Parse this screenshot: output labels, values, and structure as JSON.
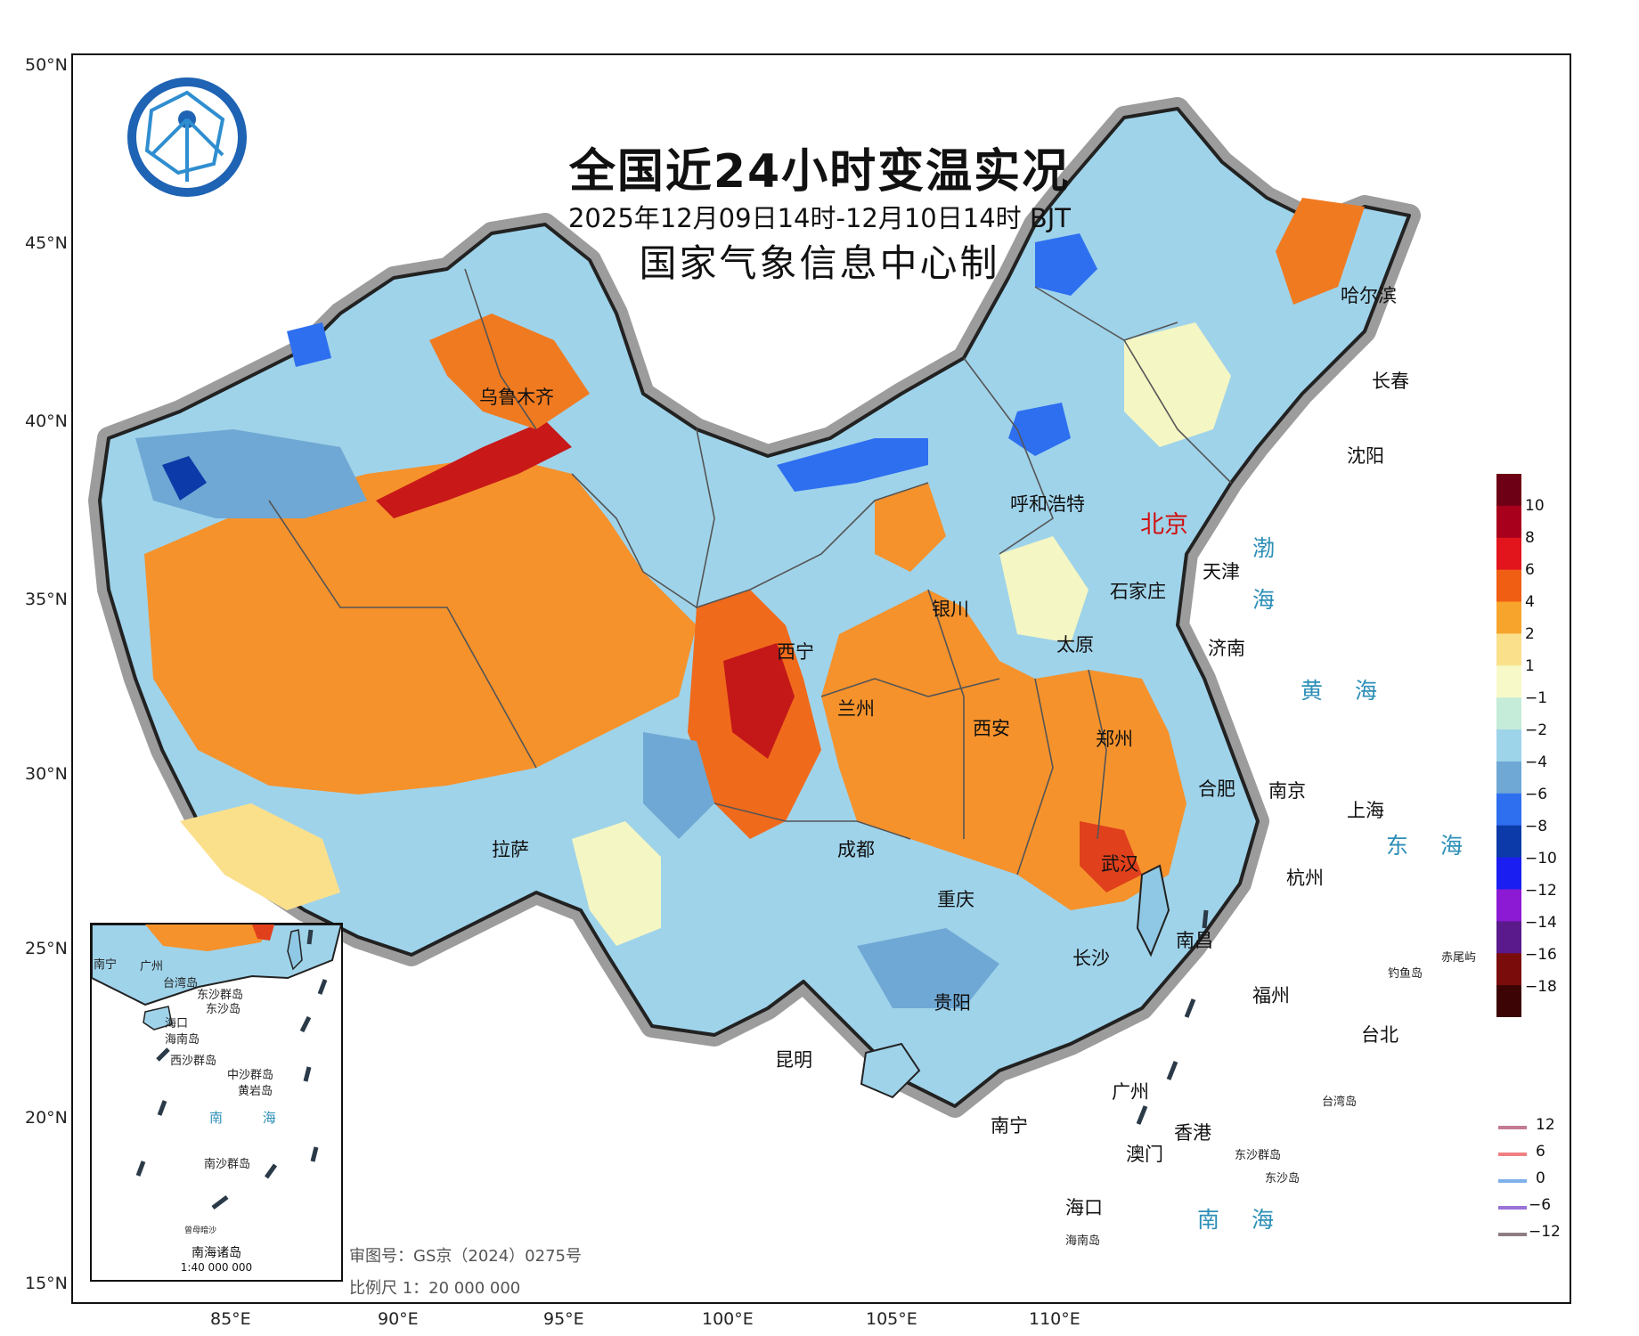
{
  "title": "全国近24小时变温实况",
  "subtitle": "2025年12月09日14时-12月10日14时 BJT",
  "producer": "国家气象信息中心制",
  "lat_labels": [
    "50°N",
    "45°N",
    "40°N",
    "35°N",
    "30°N",
    "25°N",
    "20°N",
    "15°N"
  ],
  "lon_labels": [
    "85°E",
    "90°E",
    "95°E",
    "100°E",
    "105°E",
    "110°E"
  ],
  "cities": [
    "乌鲁木齐",
    "哈尔滨",
    "长春",
    "沈阳",
    "呼和浩特",
    "北京",
    "天津",
    "石家庄",
    "银川",
    "太原",
    "济南",
    "西宁",
    "兰州",
    "西安",
    "郑州",
    "合肥",
    "南京",
    "上海",
    "拉萨",
    "成都",
    "武汉",
    "杭州",
    "重庆",
    "长沙",
    "南昌",
    "贵阳",
    "福州",
    "台北",
    "昆明",
    "广州",
    "南宁",
    "香港",
    "澳门",
    "海口"
  ],
  "seas": [
    "渤",
    "海",
    "黄 海",
    "东 海",
    "南 海"
  ],
  "islands": [
    "钓鱼岛",
    "赤尾屿",
    "台湾岛",
    "东沙群岛",
    "东沙岛",
    "海南岛"
  ],
  "inset": {
    "title": "南海诸岛",
    "scale": "1:40 000 000",
    "labels": [
      "南宁",
      "广州",
      "台湾岛",
      "东沙群岛",
      "东沙岛",
      "海口",
      "海南岛",
      "西沙群岛",
      "中沙群岛",
      "黄岩岛",
      "南 海",
      "南沙群岛",
      "曾母暗沙"
    ]
  },
  "colorbar": {
    "labels": [
      "10",
      "8",
      "6",
      "4",
      "2",
      "1",
      "−1",
      "−2",
      "−4",
      "−6",
      "−8",
      "−10",
      "−12",
      "−14",
      "−16",
      "−18"
    ],
    "colors": [
      "#6e0016",
      "#a8001c",
      "#e2141c",
      "#f05e14",
      "#f7a42c",
      "#fbe08c",
      "#f7f9c8",
      "#c4ecd8",
      "#9ed4ea",
      "#6fa8d4",
      "#2e6ff0",
      "#0c3aa8",
      "#1a1ef0",
      "#8c1ad4",
      "#5a1a8c",
      "#7a0c0c",
      "#3c0404"
    ]
  },
  "contour_legend": [
    {
      "label": "12",
      "color": "#c47a92"
    },
    {
      "label": "6",
      "color": "#f07f82"
    },
    {
      "label": "0",
      "color": "#7fb0ea"
    },
    {
      "label": "−6",
      "color": "#9a72d8"
    },
    {
      "label": "−12",
      "color": "#8e7e84"
    }
  ],
  "map_review_number": "审图号：GS京（2024）0275号",
  "scale_text": "比例尺 1：20 000 000"
}
